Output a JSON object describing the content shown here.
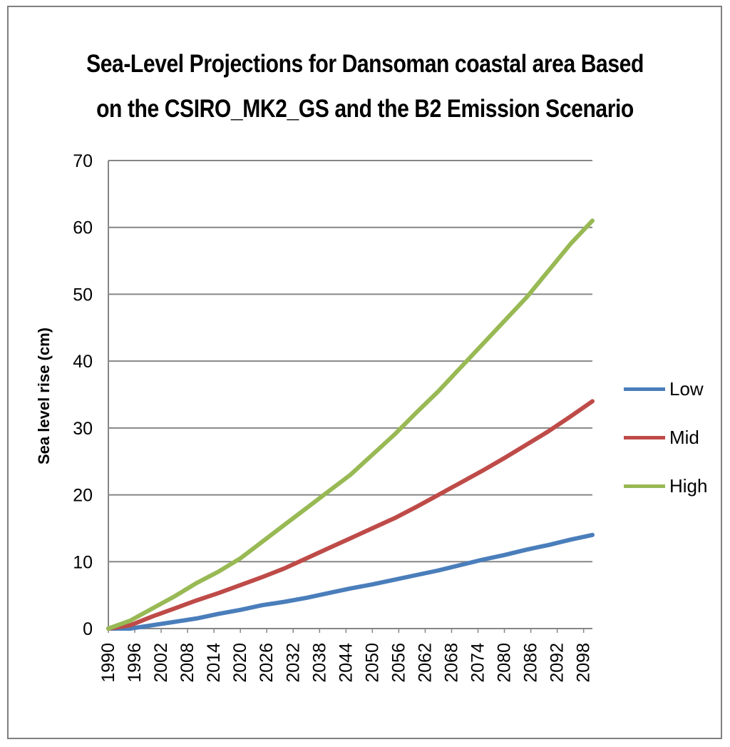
{
  "chart_data": {
    "type": "line",
    "title_line1": "Sea-Level Projections for Dansoman coastal area Based",
    "title_line2": "on the CSIRO_MK2_GS and the B2 Emission Scenario",
    "xlabel": "",
    "ylabel": "Sea level rise (cm)",
    "ylim": [
      0,
      70
    ],
    "yticks": [
      "0",
      "10",
      "20",
      "30",
      "40",
      "50",
      "60",
      "70"
    ],
    "x_start": 1990,
    "x_end": 2100,
    "xticks": [
      "1990",
      "1996",
      "2002",
      "2008",
      "2014",
      "2020",
      "2026",
      "2032",
      "2038",
      "2044",
      "2050",
      "2056",
      "2062",
      "2068",
      "2074",
      "2080",
      "2086",
      "2092",
      "2098"
    ],
    "legend_position": "right",
    "grid": true,
    "series": [
      {
        "name": "Low",
        "color": "#4a7ebb",
        "x": [
          1990,
          1995,
          2000,
          2005,
          2010,
          2015,
          2020,
          2025,
          2030,
          2035,
          2040,
          2045,
          2050,
          2055,
          2060,
          2065,
          2070,
          2075,
          2080,
          2085,
          2090,
          2095,
          2100
        ],
        "values": [
          0,
          0,
          0.5,
          1.0,
          1.5,
          2.2,
          2.8,
          3.5,
          4.0,
          4.6,
          5.3,
          6.0,
          6.6,
          7.3,
          8.0,
          8.7,
          9.5,
          10.3,
          11.0,
          11.8,
          12.5,
          13.3,
          14.0
        ]
      },
      {
        "name": "Mid",
        "color": "#be4b48",
        "x": [
          1990,
          1995,
          2000,
          2005,
          2010,
          2015,
          2020,
          2025,
          2030,
          2035,
          2040,
          2045,
          2050,
          2055,
          2060,
          2065,
          2070,
          2075,
          2080,
          2085,
          2090,
          2095,
          2100
        ],
        "values": [
          0,
          0.5,
          1.8,
          3.0,
          4.2,
          5.3,
          6.5,
          7.7,
          9.0,
          10.5,
          12.0,
          13.5,
          15.0,
          16.5,
          18.2,
          20.0,
          21.8,
          23.6,
          25.5,
          27.5,
          29.5,
          31.7,
          34.0
        ]
      },
      {
        "name": "High",
        "color": "#98b954",
        "x": [
          1990,
          1995,
          2000,
          2005,
          2010,
          2015,
          2020,
          2025,
          2030,
          2035,
          2040,
          2045,
          2050,
          2055,
          2060,
          2065,
          2070,
          2075,
          2080,
          2085,
          2090,
          2095,
          2100
        ],
        "values": [
          0,
          1.2,
          3.0,
          4.8,
          6.8,
          8.5,
          10.5,
          13.0,
          15.5,
          18.0,
          20.5,
          23.0,
          26.0,
          29.0,
          32.3,
          35.5,
          39.0,
          42.5,
          46.0,
          49.5,
          53.5,
          57.5,
          61.0
        ]
      }
    ]
  }
}
